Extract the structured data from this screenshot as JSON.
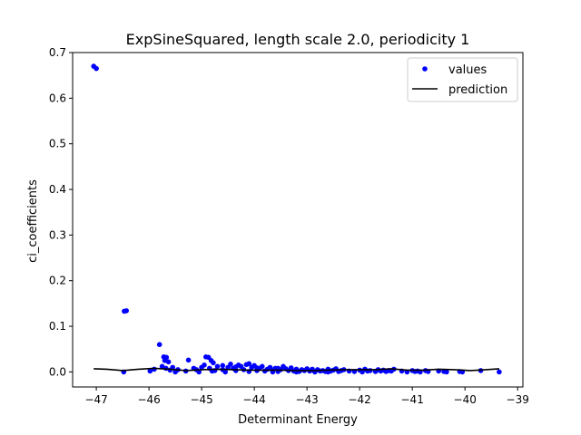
{
  "chart_data": {
    "type": "scatter",
    "title": "ExpSineSquared, length scale 2.0, periodicity 1",
    "xlabel": "Determinant Energy",
    "ylabel": "ci_coefficients",
    "xlim": [
      -47.45,
      -38.9
    ],
    "ylim": [
      -0.033,
      0.7
    ],
    "xticks": [
      -47,
      -46,
      -45,
      -44,
      -43,
      -42,
      -41,
      -40,
      -39
    ],
    "xtick_labels": [
      "−47",
      "−46",
      "−45",
      "−44",
      "−43",
      "−42",
      "−41",
      "−40",
      "−39"
    ],
    "yticks": [
      0.0,
      0.1,
      0.2,
      0.3,
      0.4,
      0.5,
      0.6,
      0.7
    ],
    "ytick_labels": [
      "0.0",
      "0.1",
      "0.2",
      "0.3",
      "0.4",
      "0.5",
      "0.6",
      "0.7"
    ],
    "legend_position": "top-right",
    "grid": false,
    "series": [
      {
        "name": "values",
        "kind": "points",
        "color": "#0000ff",
        "points": [
          [
            -47.05,
            0.67
          ],
          [
            -47.0,
            0.665
          ],
          [
            -46.47,
            0.133
          ],
          [
            -46.43,
            0.134
          ],
          [
            -46.48,
            0.0
          ],
          [
            -45.8,
            0.06
          ],
          [
            -45.72,
            0.033
          ],
          [
            -45.67,
            0.032
          ],
          [
            -45.7,
            0.025
          ],
          [
            -45.63,
            0.022
          ],
          [
            -45.75,
            0.012
          ],
          [
            -45.68,
            0.008
          ],
          [
            -45.6,
            0.004
          ],
          [
            -45.55,
            0.01
          ],
          [
            -45.9,
            0.006
          ],
          [
            -45.98,
            0.002
          ],
          [
            -45.5,
            0.0
          ],
          [
            -45.45,
            0.005
          ],
          [
            -45.25,
            0.026
          ],
          [
            -45.3,
            0.002
          ],
          [
            -45.15,
            0.008
          ],
          [
            -45.1,
            0.005
          ],
          [
            -45.05,
            0.0
          ],
          [
            -45.0,
            0.01
          ],
          [
            -44.95,
            0.015
          ],
          [
            -44.92,
            0.033
          ],
          [
            -44.87,
            0.032
          ],
          [
            -44.82,
            0.025
          ],
          [
            -44.78,
            0.02
          ],
          [
            -44.85,
            0.008
          ],
          [
            -44.75,
            0.003
          ],
          [
            -44.7,
            0.012
          ],
          [
            -44.6,
            0.005
          ],
          [
            -44.55,
            0.0
          ],
          [
            -44.5,
            0.01
          ],
          [
            -44.45,
            0.017
          ],
          [
            -44.4,
            0.008
          ],
          [
            -44.35,
            0.003
          ],
          [
            -44.3,
            0.015
          ],
          [
            -44.25,
            0.012
          ],
          [
            -44.2,
            0.005
          ],
          [
            -44.15,
            0.016
          ],
          [
            -44.1,
            0.018
          ],
          [
            -44.05,
            0.01
          ],
          [
            -44.0,
            0.014
          ],
          [
            -43.95,
            0.003
          ],
          [
            -43.9,
            0.008
          ],
          [
            -43.85,
            0.012
          ],
          [
            -43.8,
            0.002
          ],
          [
            -43.75,
            0.006
          ],
          [
            -43.7,
            0.01
          ],
          [
            -43.65,
            0.004
          ],
          [
            -43.6,
            0.008
          ],
          [
            -43.55,
            0.001
          ],
          [
            -43.5,
            0.005
          ],
          [
            -43.45,
            0.012
          ],
          [
            -43.4,
            0.007
          ],
          [
            -43.35,
            0.003
          ],
          [
            -43.3,
            0.009
          ],
          [
            -43.25,
            0.002
          ],
          [
            -43.2,
            0.006
          ],
          [
            -43.15,
            0.001
          ],
          [
            -43.1,
            0.005
          ],
          [
            -43.05,
            0.003
          ],
          [
            -43.0,
            0.007
          ],
          [
            -42.95,
            0.002
          ],
          [
            -42.9,
            0.004
          ],
          [
            -42.85,
            0.0
          ],
          [
            -42.8,
            0.005
          ],
          [
            -42.75,
            0.002
          ],
          [
            -42.7,
            0.003
          ],
          [
            -42.65,
            0.001
          ],
          [
            -42.6,
            0.006
          ],
          [
            -42.55,
            0.002
          ],
          [
            -42.5,
            0.004
          ],
          [
            -42.45,
            0.007
          ],
          [
            -42.4,
            0.001
          ],
          [
            -42.35,
            0.003
          ],
          [
            -42.3,
            0.005
          ],
          [
            -42.2,
            0.002
          ],
          [
            -42.1,
            0.001
          ],
          [
            -42.0,
            0.004
          ],
          [
            -41.95,
            0.0
          ],
          [
            -41.9,
            0.006
          ],
          [
            -41.85,
            0.002
          ],
          [
            -41.8,
            0.003
          ],
          [
            -41.7,
            0.001
          ],
          [
            -41.65,
            0.005
          ],
          [
            -41.6,
            0.002
          ],
          [
            -41.55,
            0.004
          ],
          [
            -41.5,
            0.001
          ],
          [
            -41.45,
            0.003
          ],
          [
            -41.4,
            0.002
          ],
          [
            -41.35,
            0.006
          ],
          [
            -41.2,
            0.002
          ],
          [
            -41.1,
            0.0
          ],
          [
            -41.0,
            0.003
          ],
          [
            -40.95,
            0.001
          ],
          [
            -40.9,
            0.002
          ],
          [
            -40.85,
            0.0
          ],
          [
            -40.75,
            0.003
          ],
          [
            -40.7,
            0.001
          ],
          [
            -40.5,
            0.002
          ],
          [
            -40.4,
            0.001
          ],
          [
            -40.35,
            0.0
          ],
          [
            -40.1,
            0.001
          ],
          [
            -40.05,
            0.0
          ],
          [
            -39.7,
            0.003
          ],
          [
            -39.35,
            0.0
          ],
          [
            -44.6,
            0.014
          ],
          [
            -44.35,
            0.011
          ],
          [
            -43.95,
            0.009
          ],
          [
            -43.55,
            0.008
          ],
          [
            -42.9,
            0.006
          ],
          [
            -44.8,
            0.002
          ],
          [
            -44.1,
            0.001
          ],
          [
            -43.65,
            0.0
          ],
          [
            -43.2,
            0.0
          ],
          [
            -42.6,
            0.0
          ]
        ]
      },
      {
        "name": "prediction",
        "kind": "line",
        "color": "#000000",
        "points": [
          [
            -47.05,
            0.007
          ],
          [
            -46.8,
            0.006
          ],
          [
            -46.5,
            0.003
          ],
          [
            -46.2,
            0.006
          ],
          [
            -45.9,
            0.008
          ],
          [
            -45.6,
            0.006
          ],
          [
            -45.3,
            0.003
          ],
          [
            -45.0,
            0.005
          ],
          [
            -44.7,
            0.006
          ],
          [
            -44.4,
            0.005
          ],
          [
            -44.1,
            0.004
          ],
          [
            -43.8,
            0.004
          ],
          [
            -43.5,
            0.004
          ],
          [
            -43.2,
            0.003
          ],
          [
            -42.9,
            0.003
          ],
          [
            -42.6,
            0.004
          ],
          [
            -42.3,
            0.005
          ],
          [
            -42.0,
            0.005
          ],
          [
            -41.7,
            0.005
          ],
          [
            -41.4,
            0.007
          ],
          [
            -41.1,
            0.004
          ],
          [
            -40.8,
            0.004
          ],
          [
            -40.5,
            0.006
          ],
          [
            -40.2,
            0.005
          ],
          [
            -39.9,
            0.003
          ],
          [
            -39.6,
            0.005
          ],
          [
            -39.35,
            0.007
          ]
        ]
      }
    ]
  }
}
